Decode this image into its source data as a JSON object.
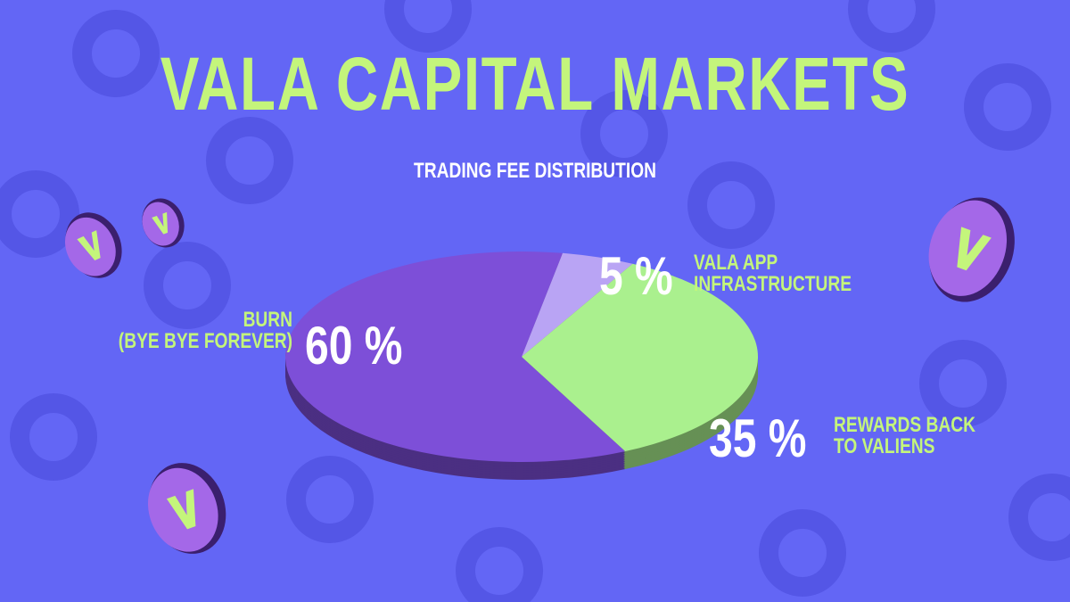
{
  "chart_data": {
    "type": "pie",
    "title": "VALA CAPITAL MARKETS",
    "subtitle": "TRADING FEE DISTRIBUTION",
    "categories": [
      "BURN\n(BYE BYE FOREVER)",
      "VALA APP\nINFRASTRUCTURE",
      "REWARDS BACK\nTO VALIENS"
    ],
    "values": [
      60,
      5,
      35
    ],
    "value_labels": [
      "60 %",
      "5 %",
      "35 %"
    ],
    "colors": [
      "#7d4fd8",
      "#b9a4f4",
      "#aaf08e"
    ]
  }
}
